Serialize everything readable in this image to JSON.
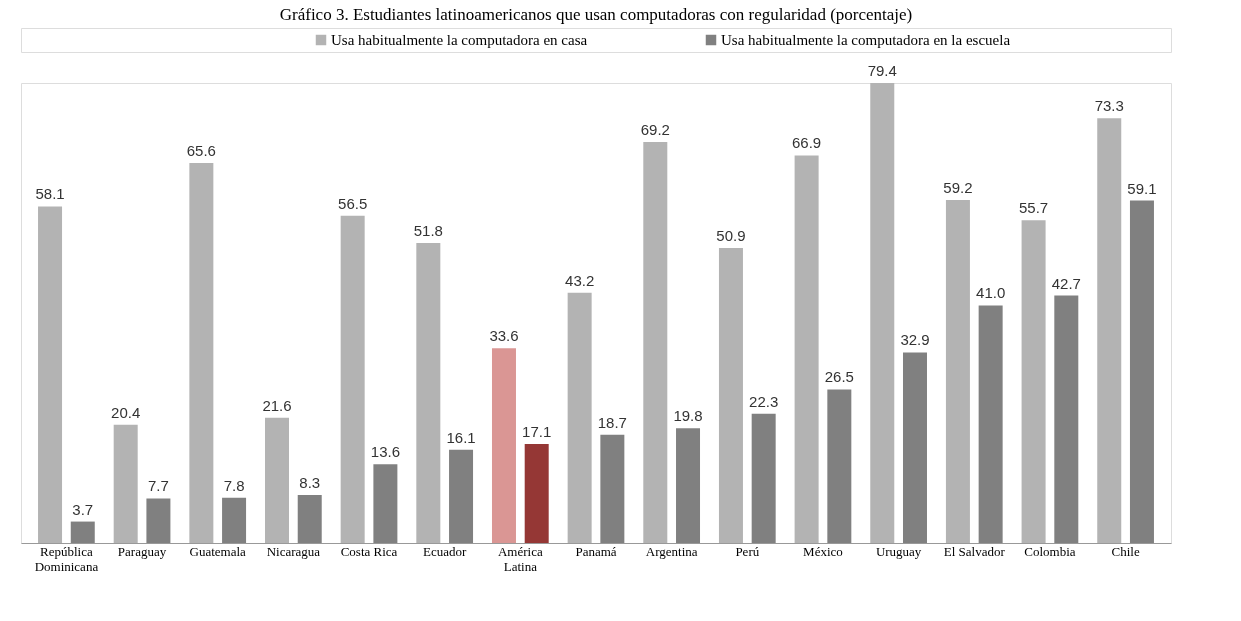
{
  "chart_data": {
    "type": "bar",
    "title": "Gráfico 3. Estudiantes latinoamericanos que usan computadoras con regularidad (porcentaje)",
    "categories": [
      "República Dominicana",
      "Paraguay",
      "Guatemala",
      "Nicaragua",
      "Costa Rica",
      "Ecuador",
      "América Latina",
      "Panamá",
      "Argentina",
      "Perú",
      "México",
      "Uruguay",
      "El Salvador",
      "Colombia",
      "Chile"
    ],
    "series": [
      {
        "name": "Usa habitualmente la computadora en casa",
        "color": "#b3b3b3",
        "colors": [
          "#b3b3b3",
          "#b3b3b3",
          "#b3b3b3",
          "#b3b3b3",
          "#b3b3b3",
          "#b3b3b3",
          "#da9694",
          "#b3b3b3",
          "#b3b3b3",
          "#b3b3b3",
          "#b3b3b3",
          "#b3b3b3",
          "#b3b3b3",
          "#b3b3b3",
          "#b3b3b3"
        ],
        "values": [
          58.1,
          20.4,
          65.6,
          21.6,
          56.5,
          51.8,
          33.6,
          43.2,
          69.2,
          50.9,
          66.9,
          79.4,
          59.2,
          55.7,
          73.3
        ],
        "value_labels": [
          "58.1",
          "20.4",
          "65.6",
          "21.6",
          "56.5",
          "51.8",
          "33.6",
          "43.2",
          "69.2",
          "50.9",
          "66.9",
          "79.4",
          "59.2",
          "55.7",
          "73.3"
        ]
      },
      {
        "name": "Usa habitualmente la computadora en la escuela",
        "color": "#808080",
        "colors": [
          "#808080",
          "#808080",
          "#808080",
          "#808080",
          "#808080",
          "#808080",
          "#953735",
          "#808080",
          "#808080",
          "#808080",
          "#808080",
          "#808080",
          "#808080",
          "#808080",
          "#808080"
        ],
        "values": [
          3.7,
          7.7,
          7.8,
          8.3,
          13.6,
          16.1,
          17.1,
          18.7,
          19.8,
          22.3,
          26.5,
          32.9,
          41.0,
          42.7,
          59.1
        ],
        "value_labels": [
          "3.7",
          "7.7",
          "7.8",
          "8.3",
          "13.6",
          "16.1",
          "17.1",
          "18.7",
          "19.8",
          "22.3",
          "26.5",
          "32.9",
          "41.0",
          "42.7",
          "59.1"
        ]
      }
    ],
    "legend": "top",
    "grid": false
  }
}
